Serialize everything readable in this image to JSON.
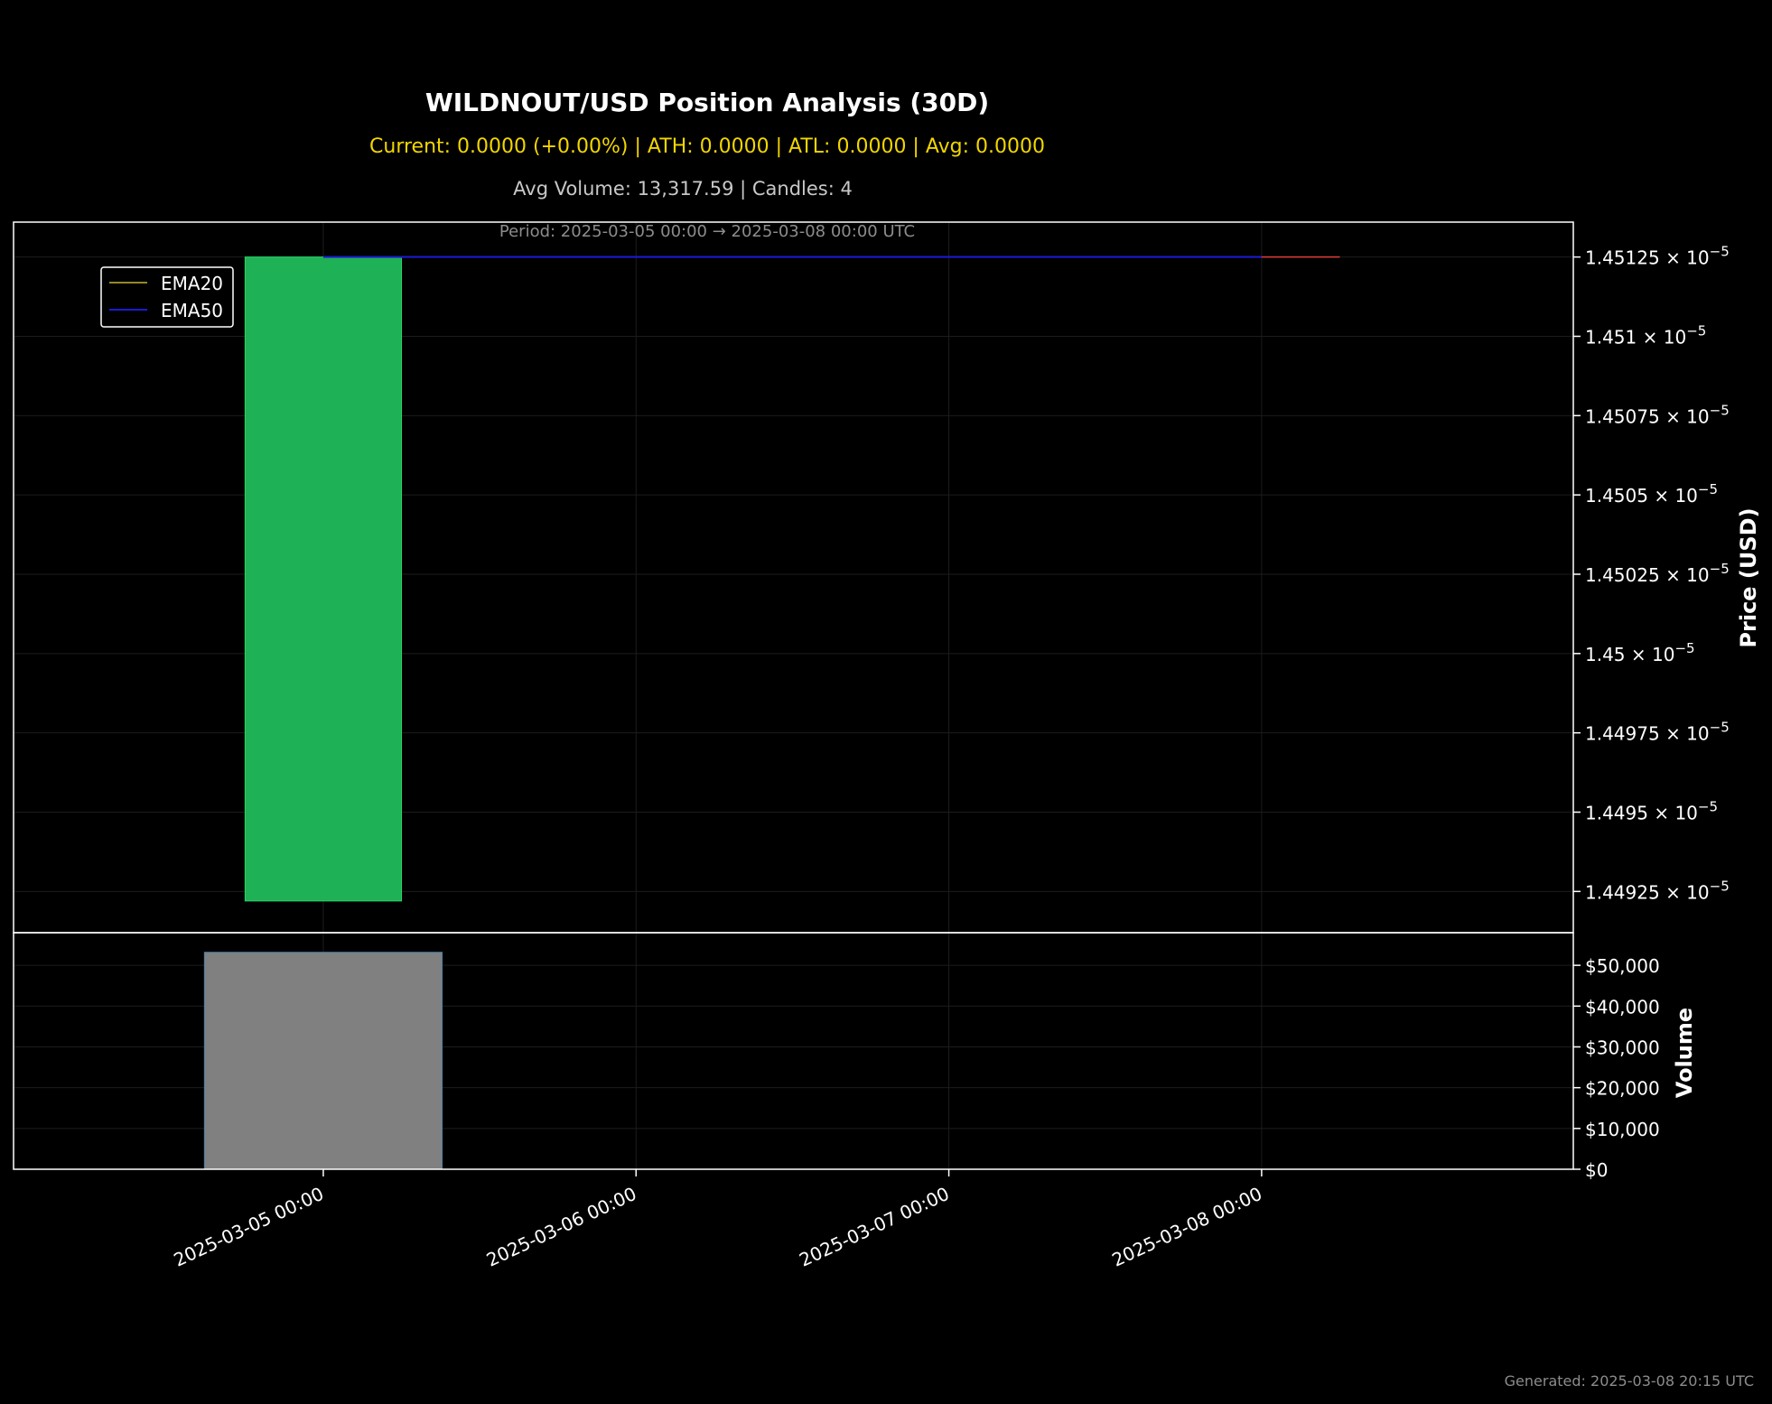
{
  "header": {
    "title": "WILDNOUT/USD Position Analysis (30D)",
    "stats": "Current: 0.0000 (+0.00%) | ATH: 0.0000 | ATL: 0.0000 | Avg: 0.0000",
    "volume_info": "Avg Volume: 13,317.59 | Candles: 4",
    "period": "Period: 2025-03-05 00:00 → 2025-03-08 00:00 UTC"
  },
  "footer": {
    "generated": "Generated: 2025-03-08 20:15 UTC"
  },
  "colors": {
    "background": "#000000",
    "up_candle": "#1fb155",
    "ema20": "#c8b432",
    "ema50": "#1a1ad6",
    "red_line": "#e23b3b",
    "volume_bar": "#808080",
    "grid": "#1c1c1c"
  },
  "chart_data": [
    {
      "type": "candlestick",
      "ylabel": "Price (USD)",
      "x_ticks": [
        "2025-03-05 00:00",
        "2025-03-06 00:00",
        "2025-03-07 00:00",
        "2025-03-08 00:00"
      ],
      "y_ticks": [
        1.44925,
        1.4495,
        1.44975,
        1.45,
        1.45025,
        1.4505,
        1.45075,
        1.451,
        1.45125
      ],
      "y_tick_exponent": "-5",
      "ylim": [
        1.44912,
        1.45136
      ],
      "xlim": [
        "2025-03-04 00:14",
        "2025-03-08 23:55"
      ],
      "candles": [
        {
          "date": "2025-03-05 00:00",
          "open": 1.44922,
          "close": 1.45125,
          "high": 1.45125,
          "low": 1.44922
        }
      ],
      "series": [
        {
          "name": "EMA20",
          "x": [
            "2025-03-05 00:00",
            "2025-03-08 00:00"
          ],
          "y": [
            1.45125,
            1.45125
          ]
        },
        {
          "name": "EMA50",
          "x": [
            "2025-03-05 00:00",
            "2025-03-08 00:00"
          ],
          "y": [
            1.45125,
            1.45125
          ]
        },
        {
          "x": [
            "2025-03-08 00:00",
            "2025-03-08 06:00"
          ],
          "y": [
            1.45125,
            1.45125
          ]
        }
      ],
      "legend": [
        "EMA20",
        "EMA50"
      ],
      "legend_position": "upper-left",
      "grid": true
    },
    {
      "type": "bar",
      "ylabel": "Volume",
      "y_ticks": [
        "$0",
        "$10,000",
        "$20,000",
        "$30,000",
        "$40,000",
        "$50,000"
      ],
      "ylim": [
        0,
        58000
      ],
      "x": [
        "2025-03-05 00:00",
        "2025-03-06 00:00",
        "2025-03-07 00:00",
        "2025-03-08 00:00"
      ],
      "values": [
        53200,
        0,
        0,
        0
      ],
      "grid": true
    }
  ]
}
